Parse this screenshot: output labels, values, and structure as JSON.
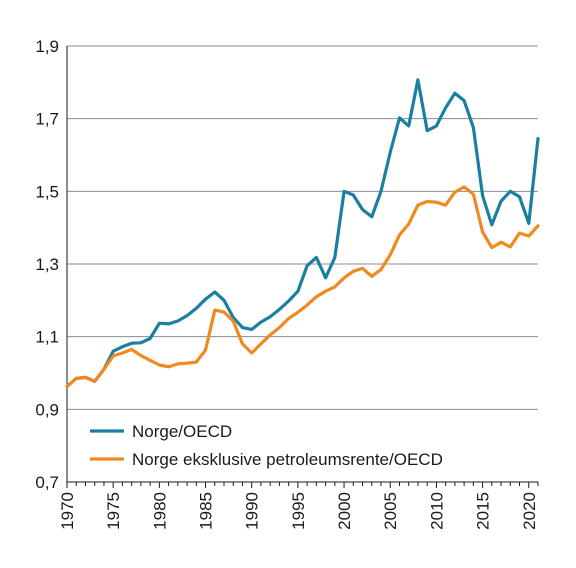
{
  "chart_data": {
    "type": "line",
    "title": "",
    "xlabel": "",
    "ylabel": "",
    "xlim": [
      1970,
      2021
    ],
    "ylim": [
      0.7,
      1.9
    ],
    "yticks": [
      "0,7",
      "0,9",
      "1,1",
      "1,3",
      "1,5",
      "1,7",
      "1,9"
    ],
    "ytick_values": [
      0.7,
      0.9,
      1.1,
      1.3,
      1.5,
      1.7,
      1.9
    ],
    "xticks": [
      "1970",
      "1975",
      "1980",
      "1985",
      "1990",
      "1995",
      "2000",
      "2005",
      "2010",
      "2015",
      "2020"
    ],
    "xtick_values": [
      1970,
      1975,
      1980,
      1985,
      1990,
      1995,
      2000,
      2005,
      2010,
      2015,
      2020
    ],
    "grid": "horizontal",
    "legend_position": "bottom-left",
    "x": [
      1970,
      1971,
      1972,
      1973,
      1974,
      1975,
      1976,
      1977,
      1978,
      1979,
      1980,
      1981,
      1982,
      1983,
      1984,
      1985,
      1986,
      1987,
      1988,
      1989,
      1990,
      1991,
      1992,
      1993,
      1994,
      1995,
      1996,
      1997,
      1998,
      1999,
      2000,
      2001,
      2002,
      2003,
      2004,
      2005,
      2006,
      2007,
      2008,
      2009,
      2010,
      2011,
      2012,
      2013,
      2014,
      2015,
      2016,
      2017,
      2018,
      2019,
      2020,
      2021
    ],
    "series": [
      {
        "name": "Norge/OECD",
        "color": "#1a7fa0",
        "values": [
          0.963,
          0.985,
          0.988,
          0.977,
          1.01,
          1.06,
          1.072,
          1.082,
          1.083,
          1.095,
          1.137,
          1.135,
          1.143,
          1.158,
          1.178,
          1.203,
          1.223,
          1.2,
          1.153,
          1.125,
          1.12,
          1.14,
          1.155,
          1.175,
          1.198,
          1.225,
          1.295,
          1.318,
          1.262,
          1.318,
          1.5,
          1.49,
          1.45,
          1.43,
          1.5,
          1.607,
          1.702,
          1.68,
          1.807,
          1.667,
          1.68,
          1.73,
          1.77,
          1.75,
          1.675,
          1.488,
          1.408,
          1.473,
          1.5,
          1.485,
          1.412,
          1.645
        ]
      },
      {
        "name": "Norge eksklusive petroleumsrente/OECD",
        "color": "#f08a1e",
        "values": [
          0.963,
          0.985,
          0.988,
          0.977,
          1.01,
          1.047,
          1.055,
          1.065,
          1.048,
          1.035,
          1.022,
          1.017,
          1.025,
          1.027,
          1.03,
          1.063,
          1.173,
          1.168,
          1.143,
          1.08,
          1.055,
          1.08,
          1.105,
          1.125,
          1.15,
          1.167,
          1.187,
          1.21,
          1.225,
          1.237,
          1.262,
          1.28,
          1.288,
          1.266,
          1.285,
          1.325,
          1.38,
          1.41,
          1.462,
          1.472,
          1.47,
          1.462,
          1.498,
          1.512,
          1.492,
          1.388,
          1.345,
          1.36,
          1.347,
          1.385,
          1.377,
          1.405
        ]
      }
    ]
  }
}
